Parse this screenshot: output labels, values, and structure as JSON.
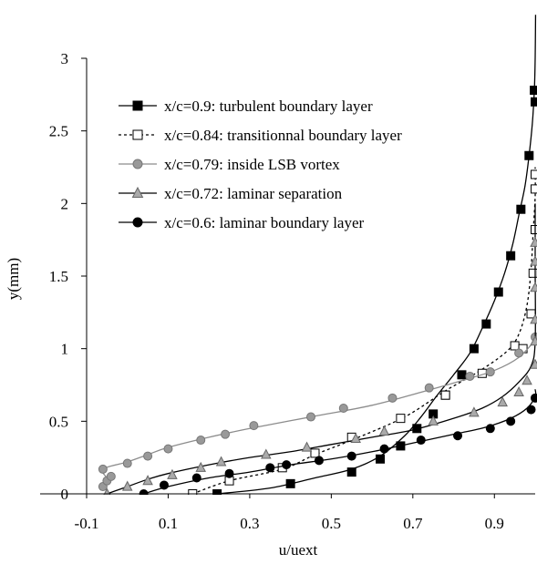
{
  "chart_data": {
    "type": "line",
    "xlabel": "u/uext",
    "ylabel": "y(mm)",
    "xlim": [
      -0.1,
      1.0
    ],
    "ylim": [
      0,
      3.0
    ],
    "xticks": [
      "-0.1",
      "0.1",
      "0.3",
      "0.5",
      "0.7",
      "0.9"
    ],
    "xtick_values": [
      -0.1,
      0.1,
      0.3,
      0.5,
      0.7,
      0.9
    ],
    "yticks": [
      "0",
      "0.5",
      "1",
      "1.5",
      "2",
      "2.5",
      "3"
    ],
    "ytick_values": [
      0,
      0.5,
      1,
      1.5,
      2,
      2.5,
      3
    ],
    "grid": false,
    "legend_position": "upper-left",
    "series": [
      {
        "name": "x/c=0.9: turbulent boundary layer",
        "color": "#000000",
        "line": "solid",
        "marker": "square-filled",
        "curve": [
          [
            0.22,
            0
          ],
          [
            0.35,
            0.04
          ],
          [
            0.46,
            0.11
          ],
          [
            0.55,
            0.17
          ],
          [
            0.62,
            0.26
          ],
          [
            0.68,
            0.4
          ],
          [
            0.72,
            0.53
          ],
          [
            0.76,
            0.68
          ],
          [
            0.8,
            0.82
          ],
          [
            0.84,
            0.97
          ],
          [
            0.87,
            1.14
          ],
          [
            0.9,
            1.33
          ],
          [
            0.925,
            1.52
          ],
          [
            0.945,
            1.72
          ],
          [
            0.96,
            1.92
          ],
          [
            0.975,
            2.12
          ],
          [
            0.985,
            2.33
          ],
          [
            0.993,
            2.55
          ],
          [
            0.998,
            2.78
          ],
          [
            1.0,
            3.0
          ],
          [
            1.001,
            3.3
          ]
        ],
        "points": [
          [
            0.22,
            0
          ],
          [
            0.4,
            0.07
          ],
          [
            0.55,
            0.15
          ],
          [
            0.62,
            0.24
          ],
          [
            0.67,
            0.33
          ],
          [
            0.71,
            0.45
          ],
          [
            0.75,
            0.55
          ],
          [
            0.78,
            0.68
          ],
          [
            0.82,
            0.82
          ],
          [
            0.85,
            1.0
          ],
          [
            0.88,
            1.17
          ],
          [
            0.91,
            1.39
          ],
          [
            0.94,
            1.64
          ],
          [
            0.965,
            1.96
          ],
          [
            0.985,
            2.33
          ],
          [
            0.998,
            2.78
          ],
          [
            1.0,
            2.7
          ]
        ]
      },
      {
        "name": "x/c=0.84: transitionnal boundary layer",
        "color": "#000000",
        "line": "dotted",
        "marker": "square-open",
        "curve": [
          [
            0.16,
            0
          ],
          [
            0.25,
            0.09
          ],
          [
            0.38,
            0.17
          ],
          [
            0.46,
            0.27
          ],
          [
            0.55,
            0.37
          ],
          [
            0.68,
            0.53
          ],
          [
            0.78,
            0.71
          ],
          [
            0.86,
            0.84
          ],
          [
            0.93,
            0.98
          ],
          [
            0.96,
            1.1
          ],
          [
            0.98,
            1.3
          ],
          [
            0.99,
            1.55
          ],
          [
            0.995,
            1.8
          ],
          [
            1.0,
            2.05
          ],
          [
            1.0,
            2.25
          ]
        ],
        "points": [
          [
            0.16,
            0
          ],
          [
            0.25,
            0.09
          ],
          [
            0.38,
            0.18
          ],
          [
            0.46,
            0.28
          ],
          [
            0.55,
            0.39
          ],
          [
            0.67,
            0.52
          ],
          [
            0.78,
            0.68
          ],
          [
            0.87,
            0.83
          ],
          [
            0.95,
            1.02
          ],
          [
            0.97,
            1.0
          ],
          [
            0.99,
            1.24
          ],
          [
            0.995,
            1.52
          ],
          [
            1.0,
            1.82
          ],
          [
            1.0,
            2.1
          ],
          [
            1.0,
            2.2
          ]
        ]
      },
      {
        "name": "x/c=0.79: inside LSB vortex",
        "color": "#888888",
        "line": "solid",
        "marker": "circle-filled",
        "curve": [
          [
            -0.07,
            0.05
          ],
          [
            -0.05,
            0.1
          ],
          [
            -0.06,
            0.17
          ],
          [
            0.0,
            0.22
          ],
          [
            0.05,
            0.27
          ],
          [
            0.1,
            0.32
          ],
          [
            0.2,
            0.39
          ],
          [
            0.3,
            0.45
          ],
          [
            0.45,
            0.53
          ],
          [
            0.6,
            0.61
          ],
          [
            0.72,
            0.7
          ],
          [
            0.82,
            0.78
          ],
          [
            0.9,
            0.85
          ],
          [
            0.96,
            0.94
          ],
          [
            1.0,
            1.06
          ]
        ],
        "points": [
          [
            -0.06,
            0.05
          ],
          [
            -0.05,
            0.09
          ],
          [
            -0.04,
            0.12
          ],
          [
            -0.06,
            0.17
          ],
          [
            0.0,
            0.21
          ],
          [
            0.05,
            0.26
          ],
          [
            0.1,
            0.31
          ],
          [
            0.18,
            0.37
          ],
          [
            0.24,
            0.41
          ],
          [
            0.31,
            0.47
          ],
          [
            0.45,
            0.53
          ],
          [
            0.53,
            0.59
          ],
          [
            0.65,
            0.66
          ],
          [
            0.74,
            0.73
          ],
          [
            0.84,
            0.81
          ],
          [
            0.89,
            0.84
          ],
          [
            0.96,
            0.97
          ],
          [
            1.0,
            1.08
          ]
        ]
      },
      {
        "name": "x/c=0.72: laminar separation",
        "color": "#000000",
        "line": "solid",
        "marker": "triangle-gray",
        "curve": [
          [
            -0.05,
            0
          ],
          [
            0.0,
            0.05
          ],
          [
            0.05,
            0.1
          ],
          [
            0.1,
            0.14
          ],
          [
            0.2,
            0.2
          ],
          [
            0.3,
            0.25
          ],
          [
            0.4,
            0.29
          ],
          [
            0.5,
            0.34
          ],
          [
            0.6,
            0.39
          ],
          [
            0.7,
            0.44
          ],
          [
            0.8,
            0.52
          ],
          [
            0.87,
            0.59
          ],
          [
            0.92,
            0.67
          ],
          [
            0.96,
            0.77
          ],
          [
            0.99,
            0.88
          ],
          [
            1.0,
            1.05
          ],
          [
            1.0,
            1.55
          ],
          [
            1.0,
            2.0
          ]
        ],
        "points": [
          [
            -0.05,
            0
          ],
          [
            0.0,
            0.05
          ],
          [
            0.05,
            0.09
          ],
          [
            0.11,
            0.13
          ],
          [
            0.18,
            0.18
          ],
          [
            0.23,
            0.22
          ],
          [
            0.34,
            0.27
          ],
          [
            0.44,
            0.32
          ],
          [
            0.56,
            0.38
          ],
          [
            0.63,
            0.43
          ],
          [
            0.75,
            0.5
          ],
          [
            0.85,
            0.56
          ],
          [
            0.92,
            0.63
          ],
          [
            0.96,
            0.7
          ],
          [
            0.98,
            0.78
          ],
          [
            1.0,
            0.89
          ],
          [
            1.0,
            1.05
          ],
          [
            1.0,
            1.2
          ],
          [
            1.0,
            1.42
          ],
          [
            1.0,
            1.6
          ],
          [
            1.0,
            1.73
          ]
        ]
      },
      {
        "name": "x/c=0.6: laminar boundary layer",
        "color": "#000000",
        "line": "solid",
        "marker": "circle-filled",
        "curve": [
          [
            0.04,
            0
          ],
          [
            0.1,
            0.05
          ],
          [
            0.2,
            0.11
          ],
          [
            0.3,
            0.15
          ],
          [
            0.4,
            0.2
          ],
          [
            0.5,
            0.24
          ],
          [
            0.6,
            0.29
          ],
          [
            0.7,
            0.35
          ],
          [
            0.8,
            0.41
          ],
          [
            0.88,
            0.46
          ],
          [
            0.94,
            0.52
          ],
          [
            0.98,
            0.59
          ],
          [
            1.0,
            0.67
          ],
          [
            1.0,
            0.72
          ]
        ],
        "points": [
          [
            0.04,
            0
          ],
          [
            0.09,
            0.06
          ],
          [
            0.17,
            0.11
          ],
          [
            0.25,
            0.14
          ],
          [
            0.35,
            0.18
          ],
          [
            0.39,
            0.2
          ],
          [
            0.47,
            0.23
          ],
          [
            0.55,
            0.26
          ],
          [
            0.63,
            0.31
          ],
          [
            0.72,
            0.37
          ],
          [
            0.81,
            0.4
          ],
          [
            0.89,
            0.45
          ],
          [
            0.94,
            0.5
          ],
          [
            0.99,
            0.58
          ],
          [
            1.0,
            0.66
          ]
        ]
      }
    ]
  }
}
